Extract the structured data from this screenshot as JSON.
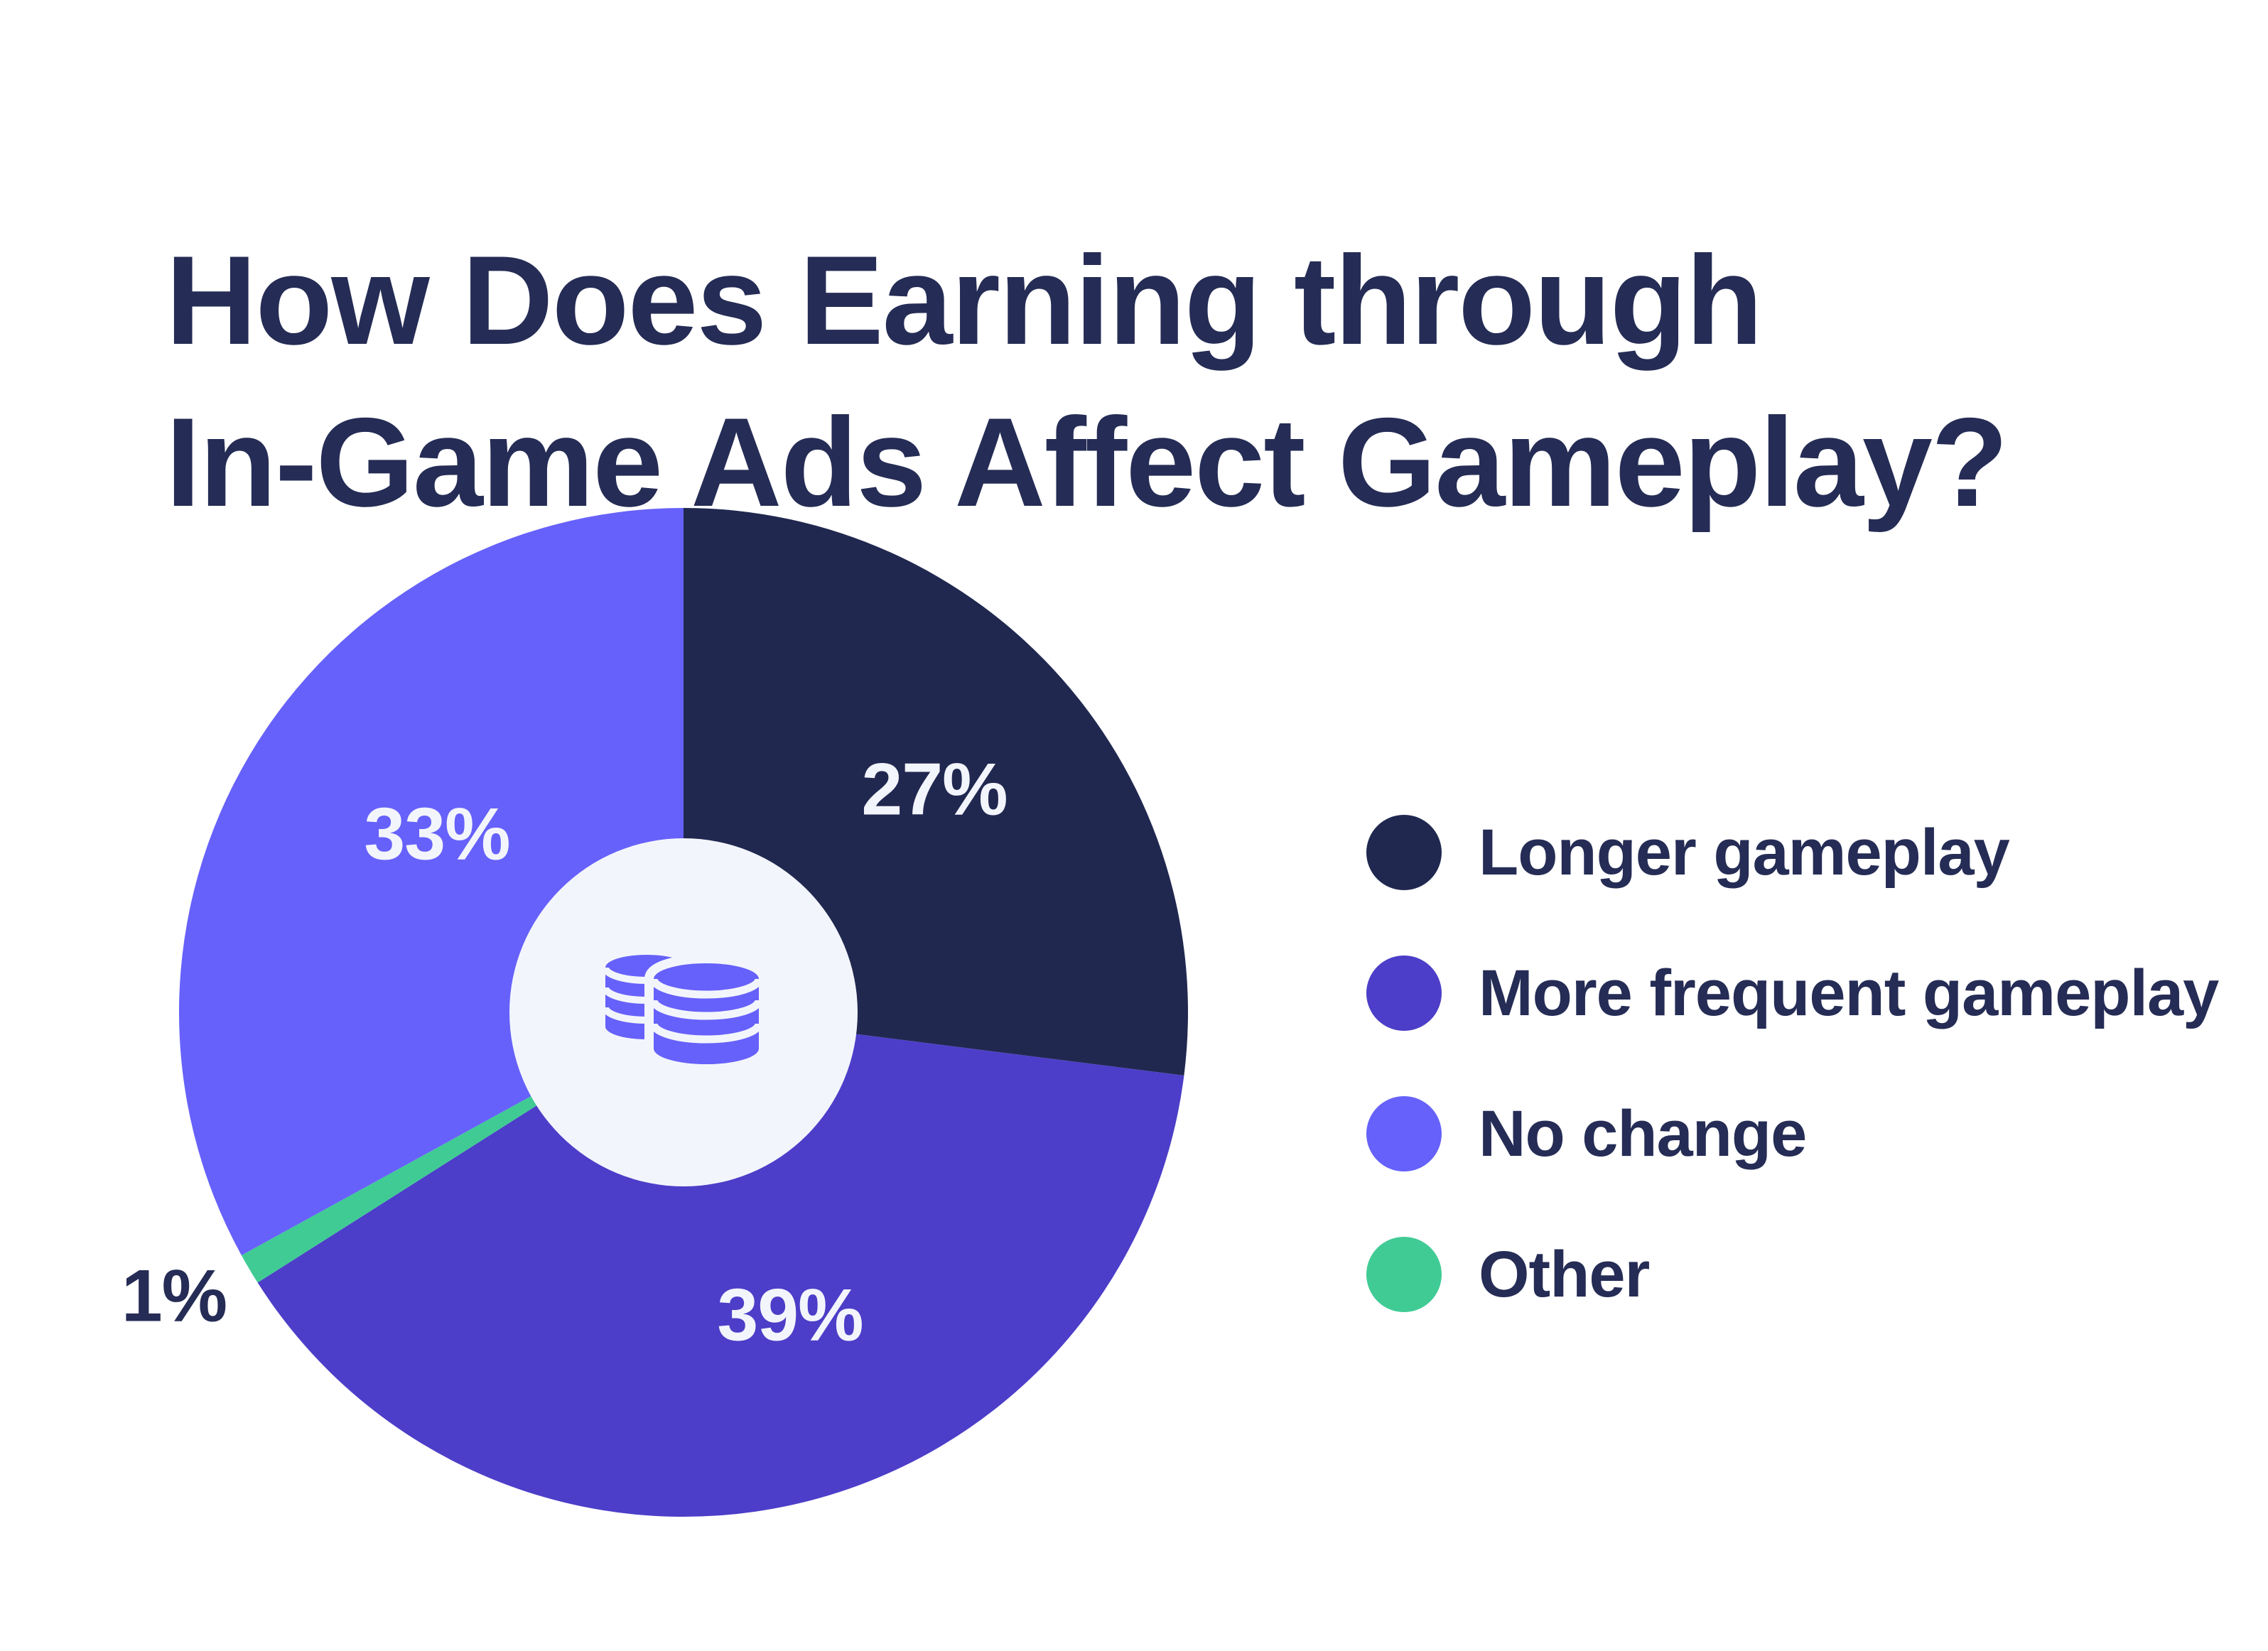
{
  "colors": {
    "background": "#FFFFFF",
    "title_text": "#252C55",
    "navy": "#202850",
    "purple": "#4C3EC8",
    "light_purple": "#6661FA",
    "green": "#40CB94",
    "donut_hole": "#F3F5FC",
    "label_light": "#F3F5FC"
  },
  "chart_data": {
    "type": "pie",
    "title": "How Does Earning through\nIn-Game Ads Affect Gameplay?",
    "donut": true,
    "hole_ratio": 0.345,
    "start_at": "12-oclock",
    "direction": "clockwise",
    "center_icon": "coins-icon",
    "segments": [
      {
        "label": "Longer gameplay",
        "value": 27,
        "pct_text": "27%",
        "color": "#202850",
        "pct_text_color": "#F3F5FC"
      },
      {
        "label": "More frequent gameplay",
        "value": 39,
        "pct_text": "39%",
        "color": "#4C3EC8",
        "pct_text_color": "#F3F5FC"
      },
      {
        "label": "Other",
        "value": 1,
        "pct_text": "1%",
        "color": "#40CB94",
        "pct_text_color": "#252C55"
      },
      {
        "label": "No change",
        "value": 33,
        "pct_text": "33%",
        "color": "#6661FA",
        "pct_text_color": "#F3F5FC"
      }
    ],
    "legend_item_order": [
      0,
      1,
      3,
      2
    ],
    "legend_position": "right"
  }
}
